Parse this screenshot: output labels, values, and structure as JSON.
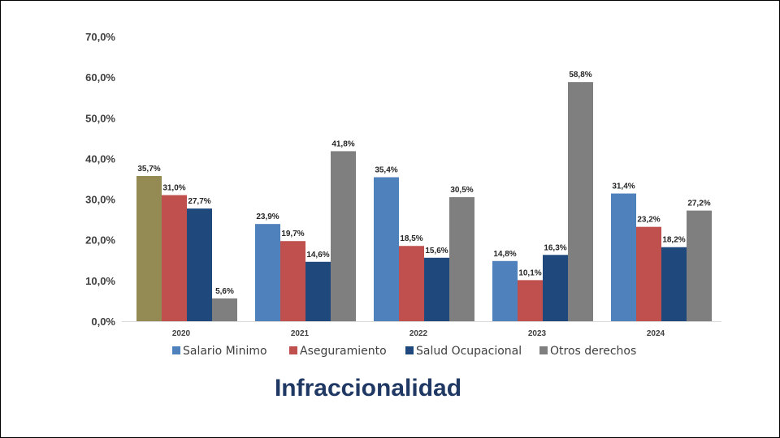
{
  "title": "Infraccionalidad",
  "chart_data": {
    "type": "bar",
    "categories": [
      "2020",
      "2021",
      "2022",
      "2023",
      "2024"
    ],
    "series": [
      {
        "name": "Salario Minimo",
        "color": "#4f81bd",
        "values": [
          35.7,
          23.9,
          35.4,
          14.8,
          31.4
        ],
        "labels": [
          "35,7%",
          "23,9%",
          "35,4%",
          "14,8%",
          "31,4%"
        ]
      },
      {
        "name": "Aseguramiento",
        "color": "#c0504d",
        "values": [
          31.0,
          19.7,
          18.5,
          10.1,
          23.2
        ],
        "labels": [
          "31,0%",
          "19,7%",
          "18,5%",
          "10,1%",
          "23,2%"
        ]
      },
      {
        "name": "Salud Ocupacional",
        "color": "#1f497d",
        "values": [
          27.7,
          14.6,
          15.6,
          16.3,
          18.2
        ],
        "labels": [
          "27,7%",
          "14,6%",
          "15,6%",
          "16,3%",
          "18,2%"
        ]
      },
      {
        "name": "Otros derechos",
        "color": "#7f7f7f",
        "values": [
          5.6,
          41.8,
          30.5,
          58.8,
          27.2
        ],
        "labels": [
          "5,6%",
          "41,8%",
          "30,5%",
          "58,8%",
          "27,2%"
        ]
      }
    ],
    "point_overrides": [
      {
        "series": 0,
        "category": 0,
        "color": "#948a54"
      }
    ],
    "y_ticks": [
      "0,0%",
      "10,0%",
      "20,0%",
      "30,0%",
      "40,0%",
      "50,0%",
      "60,0%",
      "70,0%"
    ],
    "ylim": [
      0,
      70
    ],
    "ytick_step": 10,
    "grid": false,
    "legend_position": "bottom"
  }
}
